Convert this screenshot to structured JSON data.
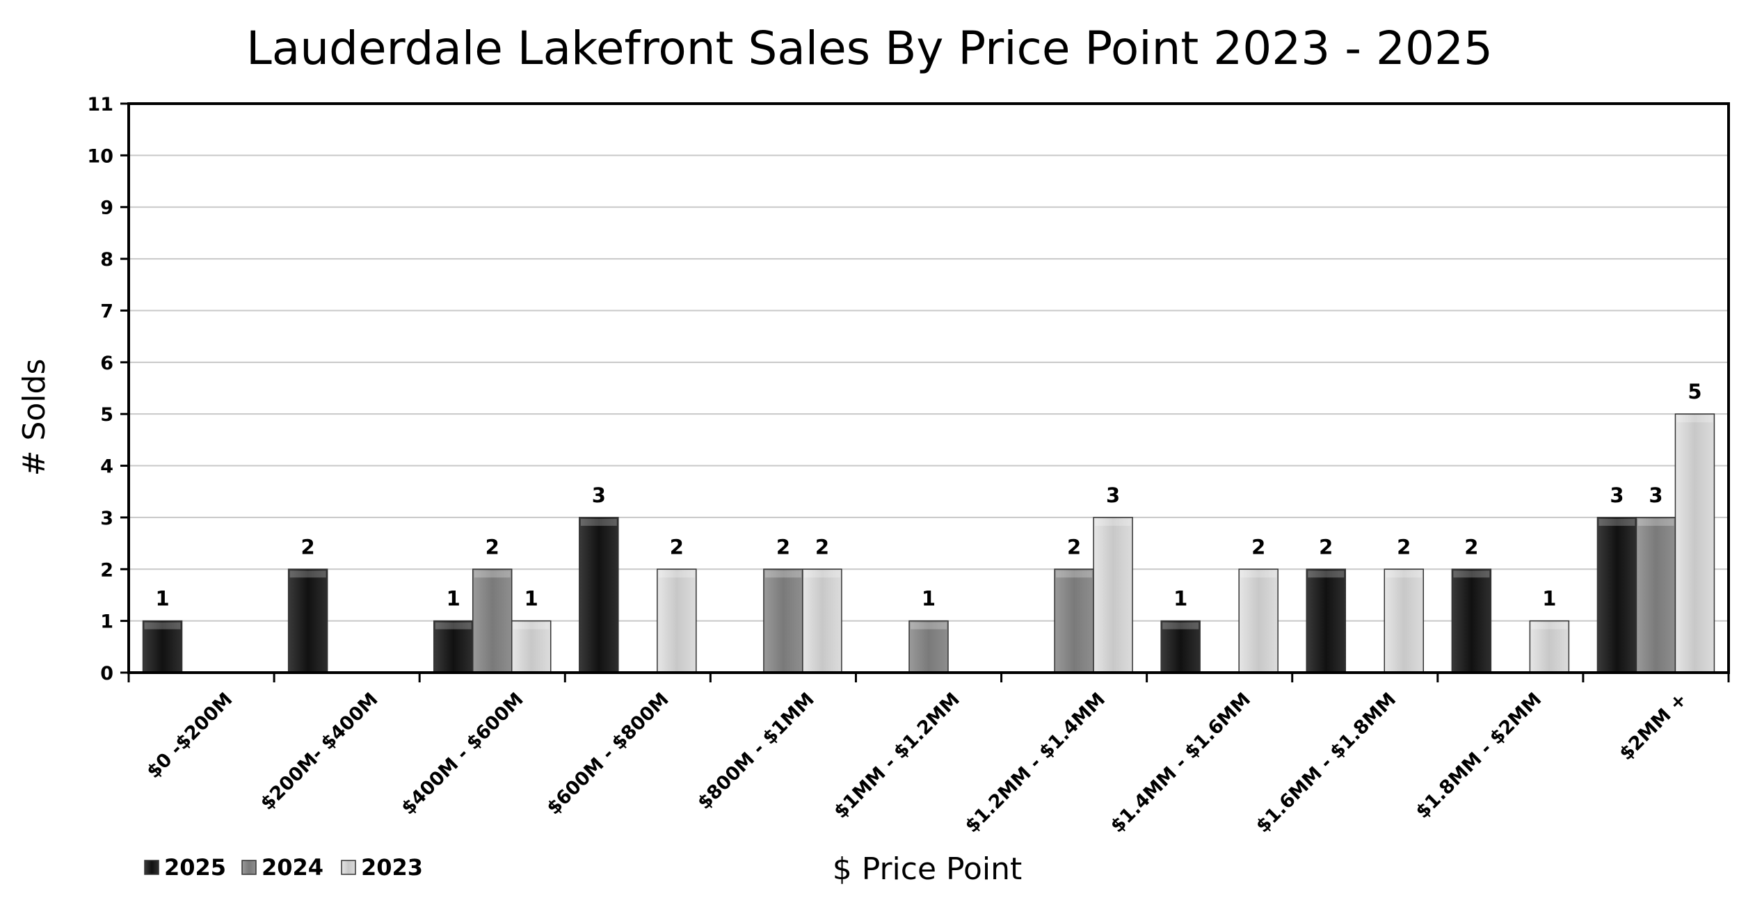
{
  "chart_data": {
    "type": "bar",
    "title": "Lauderdale Lakefront Sales By Price Point 2023 - 2025",
    "xlabel": "$ Price Point",
    "ylabel": "# Solds",
    "ylim": [
      0,
      11
    ],
    "yticks": [
      "0",
      "1",
      "2",
      "3",
      "4",
      "5",
      "6",
      "7",
      "8",
      "9",
      "10",
      "11"
    ],
    "grid": true,
    "legend_position": "bottom-left",
    "categories": [
      "$0 -$200M",
      "$200M- $400M",
      "$400M - $600M",
      "$600M - $800M",
      "$800M - $1MM",
      "$1MM - $1.2MM",
      "$1.2MM - $1.4MM",
      "$1.4MM - $1.6MM",
      "$1.6MM - $1.8MM",
      "$1.8MM - $2MM",
      "$2MM +"
    ],
    "series": [
      {
        "name": "2025",
        "color": "#1a1a1a",
        "values": [
          1,
          2,
          1,
          3,
          0,
          0,
          0,
          1,
          2,
          2,
          3
        ]
      },
      {
        "name": "2024",
        "color": "#808080",
        "values": [
          0,
          0,
          2,
          0,
          2,
          1,
          2,
          0,
          0,
          0,
          3
        ]
      },
      {
        "name": "2023",
        "color": "#d0d0d0",
        "values": [
          0,
          0,
          1,
          2,
          2,
          0,
          3,
          2,
          2,
          1,
          5
        ]
      }
    ]
  }
}
